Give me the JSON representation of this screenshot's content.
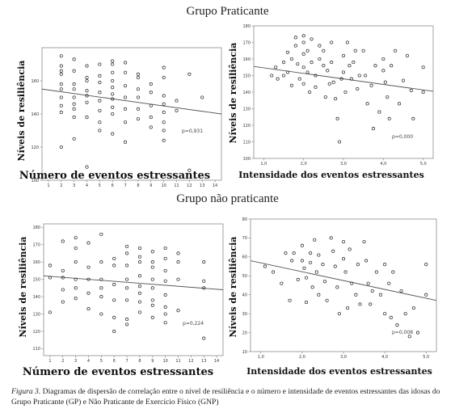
{
  "groups": {
    "top_title": "Grupo Praticante",
    "bottom_title": "Grupo não praticante"
  },
  "caption": {
    "figure_label": "Figura 3.",
    "text": "Diagramas de dispersão de correlação entre o nível de resiliência e o número e intensidade de eventos estressantes das idosas do Grupo Praticante (GP) e Não Praticante de Exercício Físico (GNP)"
  },
  "chart_data": [
    {
      "type": "scatter",
      "id": "gp-eventos",
      "ylabel": "Níveis de resiliência",
      "xlabel": "Número de eventos estressantes",
      "annotation": "p=0,931",
      "xlim": [
        0.5,
        14.5
      ],
      "ylim": [
        100,
        180
      ],
      "xticks": [
        "1",
        "2",
        "3",
        "4",
        "5",
        "6",
        "7",
        "8",
        "9",
        "10",
        "11",
        "12",
        "13",
        "14"
      ],
      "yticks": [
        "100",
        "120",
        "140",
        "160"
      ],
      "trend": [
        [
          0.5,
          155
        ],
        [
          14.5,
          140
        ]
      ],
      "points": [
        [
          2,
          175
        ],
        [
          2,
          169
        ],
        [
          2,
          166
        ],
        [
          2,
          164
        ],
        [
          2,
          158
        ],
        [
          2,
          155
        ],
        [
          2,
          150
        ],
        [
          2,
          145
        ],
        [
          2,
          141
        ],
        [
          2,
          120
        ],
        [
          3,
          173
        ],
        [
          3,
          166
        ],
        [
          3,
          158
        ],
        [
          3,
          155
        ],
        [
          3,
          150
        ],
        [
          3,
          146
        ],
        [
          3,
          143
        ],
        [
          3,
          138
        ],
        [
          3,
          125
        ],
        [
          4,
          169
        ],
        [
          4,
          162
        ],
        [
          4,
          160
        ],
        [
          4,
          154
        ],
        [
          4,
          151
        ],
        [
          4,
          147
        ],
        [
          4,
          138
        ],
        [
          4,
          108
        ],
        [
          5,
          170
        ],
        [
          5,
          163
        ],
        [
          5,
          159
        ],
        [
          5,
          153
        ],
        [
          5,
          148
        ],
        [
          5,
          142
        ],
        [
          5,
          135
        ],
        [
          5,
          130
        ],
        [
          6,
          172
        ],
        [
          6,
          170
        ],
        [
          6,
          165
        ],
        [
          6,
          160
        ],
        [
          6,
          156
        ],
        [
          6,
          152
        ],
        [
          6,
          149
        ],
        [
          6,
          144
        ],
        [
          6,
          140
        ],
        [
          6,
          128
        ],
        [
          7,
          171
        ],
        [
          7,
          165
        ],
        [
          7,
          157
        ],
        [
          7,
          150
        ],
        [
          7,
          143
        ],
        [
          7,
          135
        ],
        [
          7,
          123
        ],
        [
          8,
          164
        ],
        [
          8,
          162
        ],
        [
          8,
          155
        ],
        [
          8,
          150
        ],
        [
          8,
          143
        ],
        [
          8,
          137
        ],
        [
          9,
          158
        ],
        [
          9,
          153
        ],
        [
          9,
          145
        ],
        [
          9,
          138
        ],
        [
          9,
          132
        ],
        [
          10,
          168
        ],
        [
          10,
          162
        ],
        [
          10,
          151
        ],
        [
          10,
          146
        ],
        [
          10,
          141
        ],
        [
          10,
          135
        ],
        [
          10,
          130
        ],
        [
          10,
          124
        ],
        [
          11,
          148
        ],
        [
          11,
          142
        ],
        [
          12,
          164
        ],
        [
          12,
          106
        ],
        [
          13,
          150
        ]
      ]
    },
    {
      "type": "scatter",
      "id": "gp-intensidade",
      "ylabel": "Níveis de resiliência",
      "xlabel": "Intensidade dos eventos estressantes",
      "annotation": "p=0,000",
      "xlim": [
        0.75,
        5.25
      ],
      "ylim": [
        100,
        180
      ],
      "xticks": [
        "1,0",
        "2,0",
        "3,0",
        "4,0",
        "5,0"
      ],
      "yticks": [
        "100",
        "110",
        "120",
        "130",
        "140",
        "150",
        "160",
        "170",
        "180"
      ],
      "trend": [
        [
          0.75,
          155.5
        ],
        [
          5.25,
          140.5
        ]
      ],
      "points": [
        [
          1.2,
          150
        ],
        [
          1.3,
          155
        ],
        [
          1.35,
          148
        ],
        [
          1.5,
          158
        ],
        [
          1.5,
          150
        ],
        [
          1.6,
          164
        ],
        [
          1.6,
          152
        ],
        [
          1.7,
          160
        ],
        [
          1.7,
          144
        ],
        [
          1.8,
          173
        ],
        [
          1.8,
          168
        ],
        [
          1.85,
          157
        ],
        [
          1.9,
          148
        ],
        [
          2.0,
          174
        ],
        [
          2.0,
          170
        ],
        [
          2.0,
          163
        ],
        [
          2.0,
          155
        ],
        [
          2.0,
          145
        ],
        [
          2.1,
          165
        ],
        [
          2.1,
          152
        ],
        [
          2.15,
          140
        ],
        [
          2.2,
          172
        ],
        [
          2.2,
          158
        ],
        [
          2.3,
          150
        ],
        [
          2.3,
          143
        ],
        [
          2.4,
          168
        ],
        [
          2.4,
          160
        ],
        [
          2.5,
          165
        ],
        [
          2.5,
          156
        ],
        [
          2.55,
          137
        ],
        [
          2.6,
          153
        ],
        [
          2.65,
          145
        ],
        [
          2.7,
          170
        ],
        [
          2.7,
          158
        ],
        [
          2.75,
          146
        ],
        [
          2.8,
          136
        ],
        [
          2.85,
          124
        ],
        [
          2.9,
          110
        ],
        [
          2.95,
          148
        ],
        [
          3.0,
          162
        ],
        [
          3.0,
          152
        ],
        [
          3.05,
          140
        ],
        [
          3.1,
          170
        ],
        [
          3.15,
          156
        ],
        [
          3.2,
          148
        ],
        [
          3.25,
          158
        ],
        [
          3.3,
          165
        ],
        [
          3.35,
          142
        ],
        [
          3.4,
          150
        ],
        [
          3.5,
          165
        ],
        [
          3.55,
          150
        ],
        [
          3.6,
          133
        ],
        [
          3.7,
          144
        ],
        [
          3.75,
          118
        ],
        [
          3.8,
          156
        ],
        [
          3.9,
          128
        ],
        [
          4.0,
          160
        ],
        [
          4.0,
          153
        ],
        [
          4.05,
          146
        ],
        [
          4.1,
          137
        ],
        [
          4.15,
          124
        ],
        [
          4.2,
          156
        ],
        [
          4.3,
          165
        ],
        [
          4.4,
          133
        ],
        [
          4.5,
          147
        ],
        [
          4.6,
          162
        ],
        [
          4.7,
          141
        ],
        [
          4.75,
          124
        ],
        [
          5.0,
          155
        ],
        [
          5.0,
          140
        ]
      ]
    },
    {
      "type": "scatter",
      "id": "gnp-eventos",
      "ylabel": "Níveis de resiliência",
      "xlabel": "Número de eventos estressantes",
      "annotation": "p=0,224",
      "xlim": [
        0.5,
        14.5
      ],
      "ylim": [
        106,
        182
      ],
      "xticks": [
        "1",
        "2",
        "3",
        "4",
        "5",
        "6",
        "7",
        "8",
        "9",
        "10",
        "11",
        "12",
        "13",
        "14"
      ],
      "yticks": [
        "110",
        "120",
        "130",
        "140",
        "150",
        "160",
        "170",
        "180"
      ],
      "trend": [
        [
          0.5,
          152
        ],
        [
          14.5,
          144
        ]
      ],
      "points": [
        [
          1,
          158
        ],
        [
          1,
          151
        ],
        [
          1,
          131
        ],
        [
          2,
          172
        ],
        [
          2,
          155
        ],
        [
          2,
          151
        ],
        [
          2,
          144
        ],
        [
          2,
          137
        ],
        [
          3,
          174
        ],
        [
          3,
          168
        ],
        [
          3,
          160
        ],
        [
          3,
          150
        ],
        [
          3,
          145
        ],
        [
          3,
          139
        ],
        [
          4,
          171
        ],
        [
          4,
          157
        ],
        [
          4,
          150
        ],
        [
          4,
          142
        ],
        [
          4,
          133
        ],
        [
          5,
          176
        ],
        [
          5,
          160
        ],
        [
          5,
          150
        ],
        [
          5,
          145
        ],
        [
          5,
          140
        ],
        [
          5,
          130
        ],
        [
          6,
          162
        ],
        [
          6,
          158
        ],
        [
          6,
          147
        ],
        [
          6,
          138
        ],
        [
          6,
          128
        ],
        [
          6,
          120
        ],
        [
          7,
          169
        ],
        [
          7,
          165
        ],
        [
          7,
          158
        ],
        [
          7,
          150
        ],
        [
          7,
          145
        ],
        [
          7,
          138
        ],
        [
          7,
          127
        ],
        [
          7,
          124
        ],
        [
          8,
          168
        ],
        [
          8,
          163
        ],
        [
          8,
          160
        ],
        [
          8,
          152
        ],
        [
          8,
          146
        ],
        [
          8,
          142
        ],
        [
          8,
          137
        ],
        [
          8,
          131
        ],
        [
          9,
          166
        ],
        [
          9,
          160
        ],
        [
          9,
          157
        ],
        [
          9,
          150
        ],
        [
          9,
          145
        ],
        [
          9,
          138
        ],
        [
          9,
          135
        ],
        [
          9,
          128
        ],
        [
          10,
          168
        ],
        [
          10,
          162
        ],
        [
          10,
          155
        ],
        [
          10,
          149
        ],
        [
          10,
          141
        ],
        [
          10,
          134
        ],
        [
          10,
          130
        ],
        [
          10,
          125
        ],
        [
          11,
          165
        ],
        [
          11,
          160
        ],
        [
          11,
          150
        ],
        [
          11,
          132
        ],
        [
          13,
          160
        ],
        [
          13,
          149
        ],
        [
          13,
          145
        ],
        [
          13,
          116
        ]
      ]
    },
    {
      "type": "scatter",
      "id": "gnp-intensidade",
      "ylabel": "Níveis de resiliência",
      "xlabel": "Intensidade dos eventos estressantes",
      "annotation": "p=0,008",
      "xlim": [
        0.75,
        5.25
      ],
      "ylim": [
        10,
        80
      ],
      "xticks": [
        "1,0",
        "2,0",
        "3,0",
        "4,0",
        "5,0"
      ],
      "yticks": [
        "10",
        "20",
        "30",
        "40",
        "50",
        "60",
        "70",
        "80"
      ],
      "trend": [
        [
          0.75,
          58
        ],
        [
          5.25,
          37
        ]
      ],
      "points": [
        [
          1.1,
          55
        ],
        [
          1.3,
          52
        ],
        [
          1.5,
          46
        ],
        [
          1.6,
          62
        ],
        [
          1.7,
          37
        ],
        [
          1.75,
          58
        ],
        [
          1.8,
          62
        ],
        [
          1.9,
          48
        ],
        [
          2.0,
          66
        ],
        [
          2.0,
          58
        ],
        [
          2.05,
          54
        ],
        [
          2.1,
          49
        ],
        [
          2.1,
          36
        ],
        [
          2.2,
          62
        ],
        [
          2.2,
          57
        ],
        [
          2.25,
          44
        ],
        [
          2.3,
          69
        ],
        [
          2.35,
          52
        ],
        [
          2.4,
          61
        ],
        [
          2.4,
          40
        ],
        [
          2.5,
          56
        ],
        [
          2.55,
          47
        ],
        [
          2.6,
          37
        ],
        [
          2.7,
          70
        ],
        [
          2.75,
          63
        ],
        [
          2.8,
          55
        ],
        [
          2.85,
          44
        ],
        [
          2.9,
          30
        ],
        [
          3.0,
          68
        ],
        [
          3.0,
          59
        ],
        [
          3.05,
          52
        ],
        [
          3.1,
          33
        ],
        [
          3.15,
          64
        ],
        [
          3.2,
          46
        ],
        [
          3.3,
          40
        ],
        [
          3.35,
          56
        ],
        [
          3.4,
          35
        ],
        [
          3.5,
          68
        ],
        [
          3.55,
          58
        ],
        [
          3.6,
          46
        ],
        [
          3.65,
          35
        ],
        [
          3.7,
          42
        ],
        [
          3.8,
          52
        ],
        [
          3.9,
          40
        ],
        [
          4.0,
          30
        ],
        [
          4.0,
          56
        ],
        [
          4.1,
          46
        ],
        [
          4.15,
          28
        ],
        [
          4.2,
          52
        ],
        [
          4.3,
          24
        ],
        [
          4.4,
          42
        ],
        [
          4.5,
          30
        ],
        [
          4.6,
          18
        ],
        [
          4.7,
          33
        ],
        [
          4.8,
          20
        ],
        [
          5.0,
          56
        ],
        [
          5.0,
          40
        ]
      ]
    }
  ]
}
